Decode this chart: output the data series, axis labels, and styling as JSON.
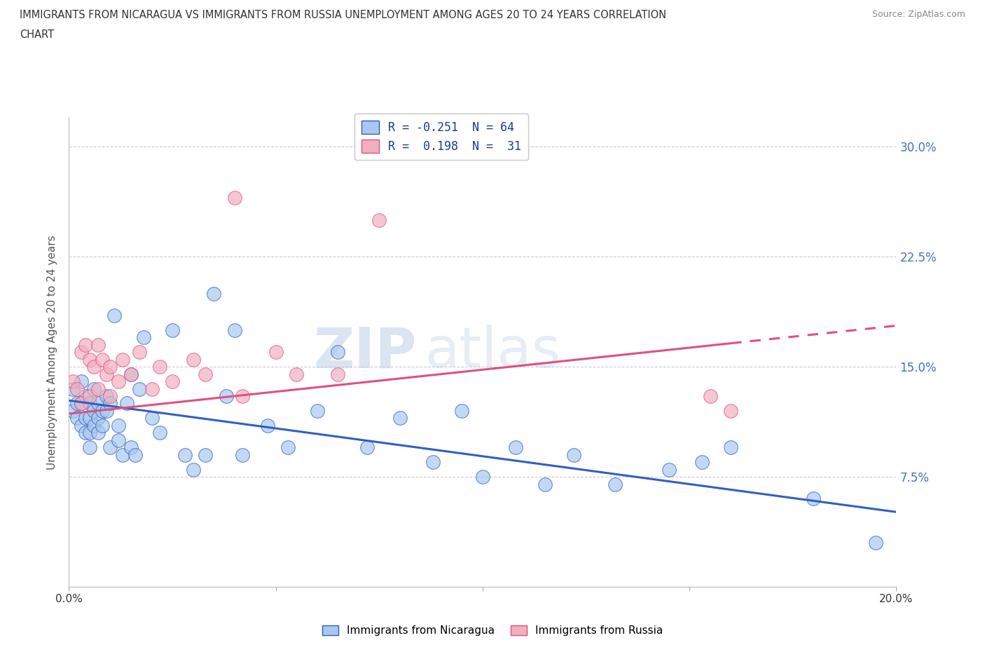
{
  "title_line1": "IMMIGRANTS FROM NICARAGUA VS IMMIGRANTS FROM RUSSIA UNEMPLOYMENT AMONG AGES 20 TO 24 YEARS CORRELATION",
  "title_line2": "CHART",
  "source": "Source: ZipAtlas.com",
  "ylabel": "Unemployment Among Ages 20 to 24 years",
  "xlim": [
    0.0,
    0.2
  ],
  "ylim": [
    0.0,
    0.32
  ],
  "yticks": [
    0.0,
    0.075,
    0.15,
    0.225,
    0.3
  ],
  "right_ytick_labels": [
    "",
    "7.5%",
    "15.0%",
    "22.5%",
    "30.0%"
  ],
  "color_nicaragua": "#a8c8f0",
  "color_russia": "#f0b0c0",
  "line_color_nicaragua": "#3060c0",
  "line_color_russia": "#e05080",
  "R_nicaragua": -0.251,
  "N_nicaragua": 64,
  "R_russia": 0.198,
  "N_russia": 31,
  "legend1_label": "R = -0.251  N = 64",
  "legend2_label": "R =  0.198  N =  31",
  "watermark_part1": "ZIP",
  "watermark_part2": "atlas",
  "nic_intercept": 0.127,
  "nic_slope": -0.38,
  "rus_intercept": 0.118,
  "rus_slope": 0.3,
  "nicaragua_x": [
    0.001,
    0.001,
    0.002,
    0.002,
    0.003,
    0.003,
    0.003,
    0.004,
    0.004,
    0.004,
    0.005,
    0.005,
    0.005,
    0.005,
    0.006,
    0.006,
    0.006,
    0.007,
    0.007,
    0.007,
    0.008,
    0.008,
    0.009,
    0.009,
    0.01,
    0.01,
    0.011,
    0.012,
    0.012,
    0.013,
    0.014,
    0.015,
    0.015,
    0.016,
    0.017,
    0.018,
    0.02,
    0.022,
    0.025,
    0.028,
    0.03,
    0.033,
    0.035,
    0.038,
    0.04,
    0.042,
    0.048,
    0.053,
    0.06,
    0.065,
    0.072,
    0.08,
    0.088,
    0.095,
    0.1,
    0.108,
    0.115,
    0.122,
    0.132,
    0.145,
    0.153,
    0.16,
    0.18,
    0.195
  ],
  "nicaragua_y": [
    0.135,
    0.12,
    0.125,
    0.115,
    0.14,
    0.125,
    0.11,
    0.13,
    0.115,
    0.105,
    0.125,
    0.115,
    0.105,
    0.095,
    0.135,
    0.12,
    0.11,
    0.125,
    0.115,
    0.105,
    0.12,
    0.11,
    0.13,
    0.12,
    0.125,
    0.095,
    0.185,
    0.11,
    0.1,
    0.09,
    0.125,
    0.145,
    0.095,
    0.09,
    0.135,
    0.17,
    0.115,
    0.105,
    0.175,
    0.09,
    0.08,
    0.09,
    0.2,
    0.13,
    0.175,
    0.09,
    0.11,
    0.095,
    0.12,
    0.16,
    0.095,
    0.115,
    0.085,
    0.12,
    0.075,
    0.095,
    0.07,
    0.09,
    0.07,
    0.08,
    0.085,
    0.095,
    0.06,
    0.03
  ],
  "russia_x": [
    0.001,
    0.002,
    0.003,
    0.003,
    0.004,
    0.005,
    0.005,
    0.006,
    0.007,
    0.007,
    0.008,
    0.009,
    0.01,
    0.01,
    0.012,
    0.013,
    0.015,
    0.017,
    0.02,
    0.022,
    0.025,
    0.03,
    0.033,
    0.04,
    0.042,
    0.05,
    0.055,
    0.065,
    0.075,
    0.155,
    0.16
  ],
  "russia_y": [
    0.14,
    0.135,
    0.16,
    0.125,
    0.165,
    0.155,
    0.13,
    0.15,
    0.165,
    0.135,
    0.155,
    0.145,
    0.13,
    0.15,
    0.14,
    0.155,
    0.145,
    0.16,
    0.135,
    0.15,
    0.14,
    0.155,
    0.145,
    0.265,
    0.13,
    0.16,
    0.145,
    0.145,
    0.25,
    0.13,
    0.12
  ]
}
